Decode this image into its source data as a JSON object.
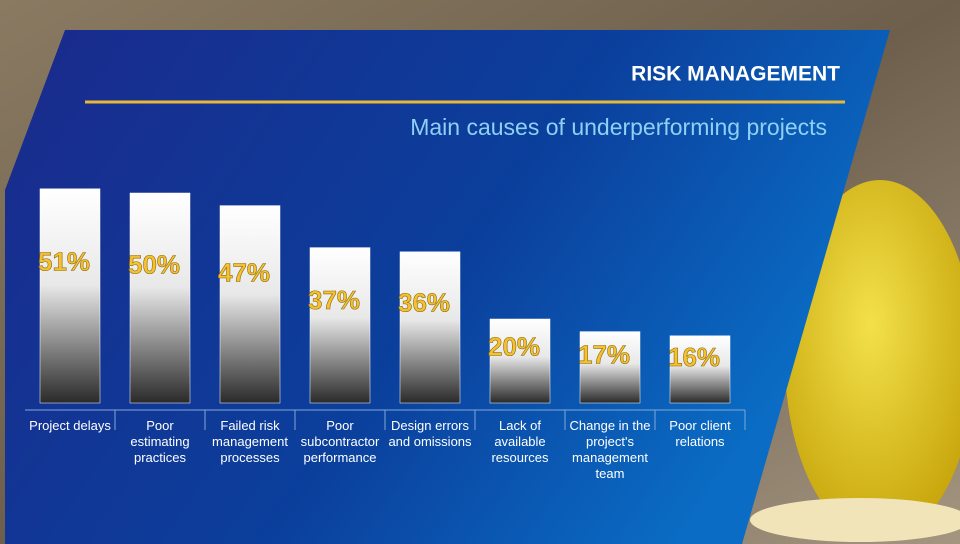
{
  "chart_data": {
    "type": "bar",
    "title": "RISK MANAGEMENT",
    "subtitle": "Main causes of underperforming projects",
    "categories": [
      "Project delays",
      "Poor estimating practices",
      "Failed risk management processes",
      "Poor subcontractor performance",
      "Design errors and omissions",
      "Lack of available resources",
      "Change in the project's management team",
      "Poor client relations"
    ],
    "values": [
      51,
      50,
      47,
      37,
      36,
      20,
      17,
      16
    ],
    "value_labels": [
      "51%",
      "50%",
      "47%",
      "37%",
      "36%",
      "20%",
      "17%",
      "16%"
    ],
    "color": "#ffffff",
    "label_color": "#f5c12e"
  }
}
